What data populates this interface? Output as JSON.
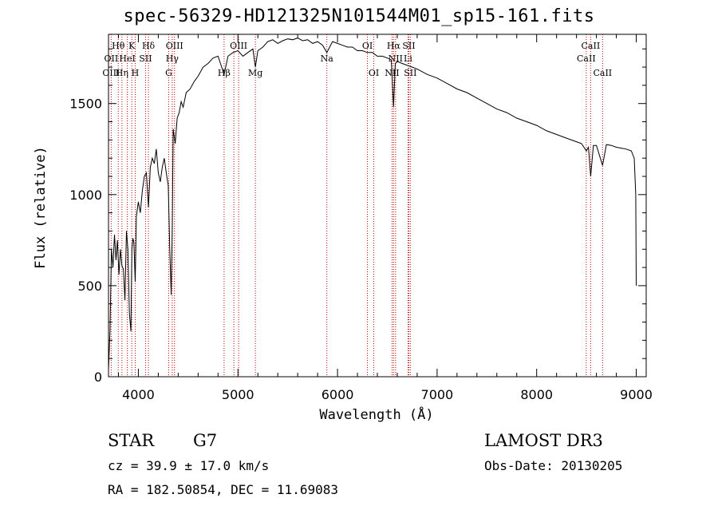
{
  "chart_data": {
    "type": "line",
    "title": "spec-56329-HD121325N101544M01_sp15-161.fits",
    "xlabel": "Wavelength (Å)",
    "ylabel": "Flux (relative)",
    "xlim": [
      3700,
      9100
    ],
    "ylim": [
      0,
      1880
    ],
    "x_ticks": [
      4000,
      5000,
      6000,
      7000,
      8000,
      9000
    ],
    "x_tick_labels": [
      "4000",
      "5000",
      "6000",
      "7000",
      "8000",
      "9000"
    ],
    "y_ticks": [
      0,
      500,
      1000,
      1500
    ],
    "y_tick_labels": [
      "0",
      "500",
      "1000",
      "1500"
    ],
    "series": [
      {
        "name": "spectrum",
        "x": [
          3700,
          3715,
          3730,
          3745,
          3760,
          3775,
          3790,
          3805,
          3820,
          3835,
          3850,
          3865,
          3880,
          3895,
          3910,
          3925,
          3935,
          3945,
          3955,
          3968,
          3980,
          4000,
          4020,
          4040,
          4060,
          4080,
          4101,
          4120,
          4140,
          4160,
          4180,
          4200,
          4220,
          4240,
          4260,
          4280,
          4300,
          4315,
          4330,
          4340,
          4350,
          4370,
          4390,
          4410,
          4430,
          4450,
          4480,
          4520,
          4560,
          4600,
          4650,
          4700,
          4750,
          4800,
          4861,
          4900,
          4950,
          5000,
          5050,
          5100,
          5150,
          5175,
          5200,
          5250,
          5300,
          5350,
          5400,
          5450,
          5500,
          5550,
          5600,
          5650,
          5700,
          5750,
          5800,
          5850,
          5893,
          5950,
          6000,
          6050,
          6100,
          6150,
          6200,
          6250,
          6300,
          6350,
          6400,
          6450,
          6500,
          6540,
          6563,
          6580,
          6600,
          6650,
          6700,
          6750,
          6800,
          6900,
          7000,
          7100,
          7200,
          7300,
          7400,
          7500,
          7600,
          7700,
          7800,
          7900,
          8000,
          8100,
          8200,
          8300,
          8400,
          8450,
          8498,
          8520,
          8542,
          8570,
          8600,
          8662,
          8700,
          8750,
          8800,
          8850,
          8900,
          8950,
          8980,
          8995,
          9000
        ],
        "y": [
          40,
          250,
          700,
          600,
          780,
          640,
          750,
          560,
          700,
          610,
          590,
          420,
          800,
          700,
          350,
          250,
          700,
          760,
          740,
          520,
          880,
          960,
          900,
          1020,
          1100,
          1120,
          930,
          1150,
          1200,
          1170,
          1250,
          1120,
          1070,
          1150,
          1200,
          1120,
          1050,
          700,
          450,
          800,
          1360,
          1280,
          1420,
          1450,
          1510,
          1480,
          1560,
          1580,
          1620,
          1650,
          1700,
          1720,
          1750,
          1760,
          1660,
          1760,
          1780,
          1790,
          1760,
          1780,
          1800,
          1700,
          1790,
          1810,
          1840,
          1850,
          1830,
          1845,
          1855,
          1850,
          1860,
          1845,
          1850,
          1830,
          1840,
          1820,
          1780,
          1840,
          1830,
          1820,
          1810,
          1810,
          1790,
          1790,
          1780,
          1780,
          1760,
          1760,
          1750,
          1740,
          1480,
          1720,
          1730,
          1720,
          1710,
          1700,
          1690,
          1660,
          1640,
          1610,
          1580,
          1560,
          1530,
          1500,
          1470,
          1450,
          1420,
          1400,
          1380,
          1350,
          1330,
          1310,
          1290,
          1280,
          1240,
          1260,
          1100,
          1270,
          1270,
          1160,
          1275,
          1270,
          1260,
          1255,
          1250,
          1240,
          1200,
          1000,
          500
        ]
      }
    ],
    "line_labels": [
      {
        "text": "Hθ",
        "x": 3798,
        "row": 1
      },
      {
        "text": "OII",
        "x": 3727,
        "row": 2
      },
      {
        "text": "OIII",
        "x": 3727,
        "row": 3
      },
      {
        "text": "K",
        "x": 3934,
        "row": 1
      },
      {
        "text": "HeI",
        "x": 3889,
        "row": 2
      },
      {
        "text": "Hη",
        "x": 3835,
        "row": 3
      },
      {
        "text": "Hδ",
        "x": 4101,
        "row": 1
      },
      {
        "text": "SII",
        "x": 4072,
        "row": 2
      },
      {
        "text": "H",
        "x": 3968,
        "row": 3
      },
      {
        "text": "OIII",
        "x": 4363,
        "row": 1
      },
      {
        "text": "Hγ",
        "x": 4340,
        "row": 2
      },
      {
        "text": "G",
        "x": 4305,
        "row": 3
      },
      {
        "text": "OIII",
        "x": 5007,
        "row": 1
      },
      {
        "text": "Hβ",
        "x": 4861,
        "row": 3
      },
      {
        "text": "Mg",
        "x": 5175,
        "row": 3
      },
      {
        "text": "Na",
        "x": 5893,
        "row": 2
      },
      {
        "text": "OI",
        "x": 6300,
        "row": 1
      },
      {
        "text": "OI",
        "x": 6364,
        "row": 3
      },
      {
        "text": "Hα",
        "x": 6563,
        "row": 1
      },
      {
        "text": "SII",
        "x": 6716,
        "row": 1
      },
      {
        "text": "NII",
        "x": 6583,
        "row": 2
      },
      {
        "text": "Li",
        "x": 6708,
        "row": 2
      },
      {
        "text": "NII",
        "x": 6548,
        "row": 3
      },
      {
        "text": "SII",
        "x": 6731,
        "row": 3
      },
      {
        "text": "CaII",
        "x": 8542,
        "row": 1
      },
      {
        "text": "CaII",
        "x": 8498,
        "row": 2
      },
      {
        "text": "CaII",
        "x": 8662,
        "row": 3
      }
    ],
    "line_positions": [
      3727,
      3798,
      3835,
      3889,
      3934,
      3968,
      4072,
      4101,
      4305,
      4340,
      4363,
      4861,
      4959,
      5007,
      5175,
      5893,
      6300,
      6364,
      6548,
      6563,
      6583,
      6708,
      6716,
      6731,
      8498,
      8542,
      8662
    ],
    "colors": {
      "spectrum": "#000000",
      "lines": "#c00000",
      "frame": "#000000"
    }
  },
  "info": {
    "object_type": "STAR",
    "subclass": "G7",
    "survey": "LAMOST DR3",
    "cz": "cz = 39.9 ± 17.0 km/s",
    "obs_date": "Obs-Date: 20130205",
    "coords": "RA = 182.50854, DEC =  11.69083"
  }
}
